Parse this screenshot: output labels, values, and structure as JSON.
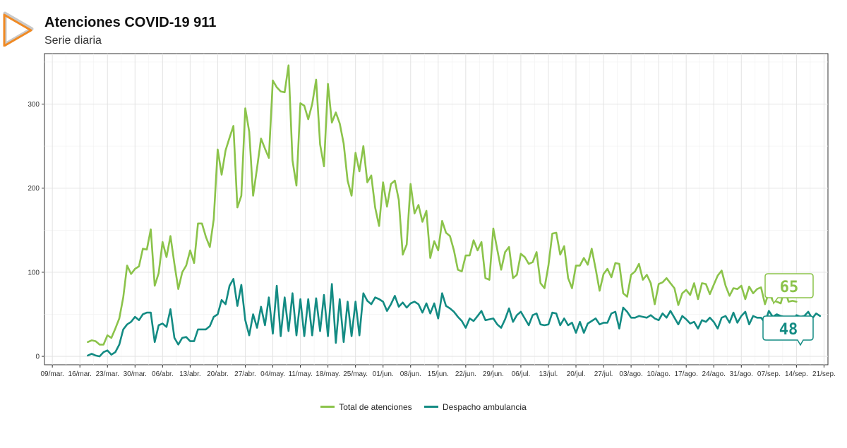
{
  "header": {
    "title": "Atenciones COVID-19 911",
    "subtitle": "Serie diaria"
  },
  "colors": {
    "total": "#8BC34A",
    "ambulancia": "#138B83",
    "logo_orange": "#F08A24",
    "logo_grey": "#C9C9C9"
  },
  "legend": {
    "total_label": "Total de atenciones",
    "ambulancia_label": "Despacho ambulancia"
  },
  "callouts": {
    "total_last": "65",
    "ambulancia_last": "48"
  },
  "chart_data": {
    "type": "line",
    "title": "Atenciones COVID-19 911",
    "subtitle": "Serie diaria",
    "xlabel": "",
    "ylabel": "",
    "ylim": [
      -10,
      360
    ],
    "yticks": [
      0,
      100,
      200,
      300
    ],
    "x_tick_labels": [
      "09/mar.",
      "16/mar.",
      "23/mar.",
      "30/mar.",
      "06/abr.",
      "13/abr.",
      "20/abr.",
      "27/abr.",
      "04/may.",
      "11/may.",
      "18/may.",
      "25/may.",
      "01/jun.",
      "08/jun.",
      "15/jun.",
      "22/jun.",
      "29/jun.",
      "06/jul.",
      "13/jul.",
      "20/jul.",
      "27/jul.",
      "03/ago.",
      "10/ago.",
      "17/ago.",
      "24/ago.",
      "31/ago.",
      "07/sep.",
      "14/sep.",
      "21/sep."
    ],
    "x_range_days": [
      -2,
      197
    ],
    "start_day": 9,
    "series": [
      {
        "name": "Total de atenciones",
        "values": [
          17,
          19,
          18,
          14,
          14,
          25,
          22,
          33,
          45,
          70,
          108,
          98,
          104,
          107,
          128,
          127,
          151,
          84,
          99,
          136,
          118,
          143,
          110,
          80,
          100,
          108,
          126,
          111,
          158,
          158,
          142,
          130,
          163,
          246,
          216,
          245,
          260,
          274,
          177,
          191,
          295,
          267,
          191,
          224,
          259,
          247,
          236,
          328,
          320,
          315,
          314,
          346,
          233,
          203,
          301,
          298,
          282,
          300,
          329,
          252,
          226,
          324,
          278,
          290,
          277,
          253,
          209,
          191,
          242,
          220,
          250,
          207,
          215,
          177,
          155,
          207,
          178,
          205,
          209,
          186,
          121,
          133,
          205,
          170,
          180,
          160,
          173,
          117,
          137,
          126,
          161,
          147,
          143,
          126,
          103,
          101,
          120,
          120,
          138,
          126,
          136,
          93,
          91,
          152,
          127,
          103,
          124,
          130,
          93,
          97,
          122,
          118,
          110,
          112,
          124,
          87,
          81,
          108,
          146,
          147,
          121,
          131,
          93,
          81,
          108,
          108,
          117,
          109,
          128,
          104,
          78,
          98,
          104,
          94,
          111,
          110,
          75,
          71,
          97,
          101,
          110,
          91,
          97,
          87,
          62,
          86,
          88,
          93,
          87,
          81,
          61,
          75,
          79,
          73,
          87,
          68,
          87,
          86,
          74,
          85,
          96,
          102,
          84,
          72,
          81,
          80,
          84,
          68,
          83,
          75,
          80,
          82,
          62,
          76,
          66,
          65,
          63,
          80,
          65,
          66,
          65
        ],
        "color": "#8BC34A"
      },
      {
        "name": "Despacho ambulancia",
        "values": [
          1,
          3,
          1,
          0,
          5,
          7,
          2,
          5,
          14,
          32,
          38,
          41,
          47,
          43,
          50,
          52,
          52,
          17,
          37,
          39,
          35,
          56,
          22,
          14,
          22,
          23,
          18,
          18,
          32,
          32,
          32,
          36,
          47,
          50,
          67,
          62,
          84,
          92,
          60,
          85,
          43,
          25,
          50,
          34,
          59,
          37,
          70,
          27,
          84,
          24,
          70,
          30,
          75,
          25,
          68,
          24,
          68,
          25,
          69,
          30,
          73,
          24,
          86,
          16,
          68,
          17,
          65,
          24,
          65,
          25,
          75,
          66,
          62,
          70,
          68,
          65,
          54,
          62,
          72,
          59,
          64,
          58,
          63,
          65,
          62,
          52,
          63,
          51,
          63,
          45,
          75,
          60,
          57,
          53,
          47,
          42,
          34,
          45,
          42,
          48,
          54,
          43,
          44,
          45,
          38,
          34,
          44,
          57,
          41,
          49,
          53,
          45,
          37,
          49,
          51,
          38,
          37,
          38,
          52,
          51,
          37,
          45,
          37,
          40,
          28,
          41,
          28,
          39,
          42,
          45,
          38,
          40,
          40,
          51,
          53,
          33,
          58,
          53,
          46,
          46,
          48,
          47,
          46,
          49,
          45,
          43,
          51,
          46,
          54,
          46,
          38,
          48,
          44,
          39,
          41,
          33,
          43,
          41,
          46,
          41,
          33,
          46,
          48,
          40,
          52,
          40,
          48,
          53,
          38,
          48,
          46,
          46,
          40,
          54,
          47,
          50,
          48,
          47,
          44,
          36,
          49,
          47,
          48,
          53,
          45,
          51,
          48
        ],
        "color": "#138B83"
      }
    ],
    "legend_position": "bottom",
    "grid": true
  }
}
